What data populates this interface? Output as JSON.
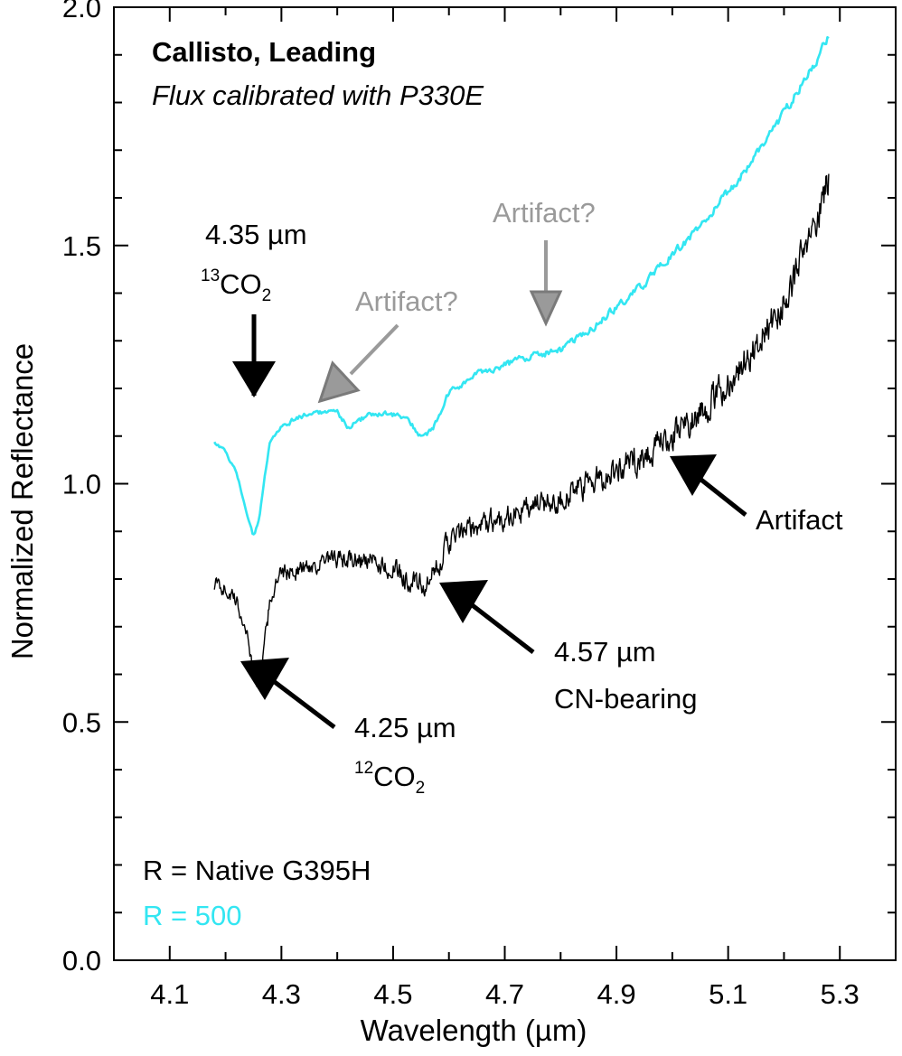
{
  "chart_data": {
    "type": "line",
    "title": "Callisto, Leading",
    "subtitle": "Flux calibrated with P330E",
    "xlabel": "Wavelength (µm)",
    "ylabel": "Normalized Reflectance",
    "xlim": [
      4.0,
      5.4
    ],
    "ylim": [
      0.0,
      2.0
    ],
    "x_ticks": [
      "4.1",
      "4.3",
      "4.5",
      "4.7",
      "4.9",
      "5.1",
      "5.3"
    ],
    "x_tick_values": [
      4.1,
      4.3,
      4.5,
      4.7,
      4.9,
      5.1,
      5.3
    ],
    "y_ticks": [
      "0.0",
      "0.5",
      "1.0",
      "1.5",
      "2.0"
    ],
    "y_tick_values": [
      0.0,
      0.5,
      1.0,
      1.5,
      2.0
    ],
    "grid": false,
    "colors": {
      "native": "#000000",
      "r500": "#33e6f2",
      "artifact_q": "#9a9a9a"
    },
    "legend": [
      {
        "label": "R = Native G395H",
        "color": "#000000"
      },
      {
        "label": "R = 500",
        "color": "#33e6f2"
      }
    ],
    "series": [
      {
        "name": "R = Native G395H",
        "color": "#000000",
        "noise": 0.022,
        "x": [
          4.18,
          4.2,
          4.22,
          4.24,
          4.25,
          4.26,
          4.27,
          4.28,
          4.3,
          4.33,
          4.36,
          4.4,
          4.45,
          4.5,
          4.54,
          4.56,
          4.58,
          4.6,
          4.65,
          4.7,
          4.75,
          4.8,
          4.85,
          4.9,
          4.95,
          5.0,
          5.05,
          5.1,
          5.15,
          5.2,
          5.25,
          5.28
        ],
        "y": [
          0.79,
          0.78,
          0.75,
          0.68,
          0.6,
          0.58,
          0.66,
          0.76,
          0.81,
          0.82,
          0.83,
          0.84,
          0.84,
          0.82,
          0.79,
          0.78,
          0.83,
          0.88,
          0.91,
          0.93,
          0.95,
          0.97,
          1.0,
          1.03,
          1.06,
          1.1,
          1.15,
          1.21,
          1.29,
          1.38,
          1.52,
          1.64
        ]
      },
      {
        "name": "R = 500",
        "color": "#33e6f2",
        "noise": 0.006,
        "x": [
          4.18,
          4.2,
          4.22,
          4.24,
          4.25,
          4.26,
          4.27,
          4.28,
          4.3,
          4.33,
          4.36,
          4.4,
          4.42,
          4.45,
          4.48,
          4.52,
          4.55,
          4.57,
          4.6,
          4.65,
          4.7,
          4.75,
          4.8,
          4.85,
          4.9,
          4.95,
          5.0,
          5.05,
          5.1,
          5.15,
          5.2,
          5.25,
          5.28
        ],
        "y": [
          1.09,
          1.07,
          1.02,
          0.93,
          0.89,
          0.92,
          1.01,
          1.09,
          1.12,
          1.14,
          1.15,
          1.15,
          1.12,
          1.14,
          1.15,
          1.14,
          1.1,
          1.11,
          1.19,
          1.23,
          1.25,
          1.27,
          1.28,
          1.32,
          1.37,
          1.42,
          1.48,
          1.54,
          1.61,
          1.69,
          1.78,
          1.87,
          1.94
        ]
      }
    ],
    "annotations": [
      {
        "lines": [
          "4.35 µm"
        ],
        "formula": {
          "pre_sup": "13",
          "base": "CO",
          "sub": "2"
        },
        "arrow_to": [
          4.335,
          1.18
        ],
        "color": "#000000"
      },
      {
        "lines": [
          "4.25 µm"
        ],
        "formula": {
          "pre_sup": "12",
          "base": "CO",
          "sub": "2"
        },
        "arrow_to": [
          4.265,
          0.7
        ],
        "color": "#000000"
      },
      {
        "lines": [
          "4.57 µm",
          "CN-bearing"
        ],
        "arrow_to": [
          4.58,
          0.74
        ],
        "color": "#000000"
      },
      {
        "lines": [
          "Artifact"
        ],
        "arrow_to": [
          5.01,
          1.09
        ],
        "color": "#000000"
      },
      {
        "lines": [
          "Artifact?"
        ],
        "arrow_to": [
          4.44,
          1.17
        ],
        "color": "#9a9a9a"
      },
      {
        "lines": [
          "Artifact?"
        ],
        "arrow_to": [
          4.83,
          1.3
        ],
        "color": "#9a9a9a"
      }
    ]
  }
}
